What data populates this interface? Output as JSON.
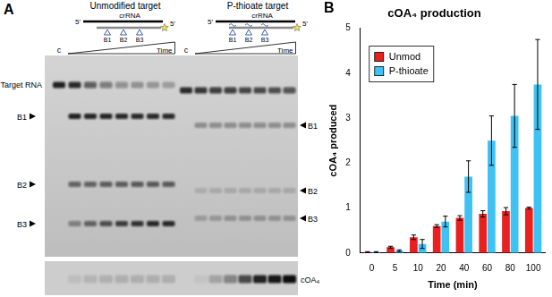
{
  "panel_a": {
    "panel_label": "A",
    "target_label": "Target RNA",
    "product_label": "cOA₄",
    "control_label": "c",
    "time_label": "Time",
    "groups": [
      {
        "title": "Unmodified target",
        "guide": "crRNA",
        "end_labels": [
          "5'",
          "5'"
        ],
        "sites": [
          "B1",
          "B2",
          "B3"
        ],
        "bands": [
          "B1",
          "B2",
          "B3"
        ]
      },
      {
        "title": "P-thioate target",
        "guide": "crRNA",
        "end_labels": [
          "5'",
          "5'"
        ],
        "sites": [
          "B1",
          "B2",
          "B3"
        ],
        "bands": [
          "B1",
          "B2",
          "B3"
        ]
      }
    ]
  },
  "chart_data": {
    "type": "bar",
    "panel_label": "B",
    "title": "cOA₄ production",
    "x_label": "Time (min)",
    "y_label": "cOA₄ produced",
    "categories": [
      "0",
      "5",
      "10",
      "20",
      "40",
      "60",
      "80",
      "100"
    ],
    "series": [
      {
        "name": "Unmod",
        "color": "#e8201e",
        "values": [
          0.02,
          0.13,
          0.35,
          0.6,
          0.78,
          0.87,
          0.93,
          1.0
        ],
        "errors": [
          0.01,
          0.02,
          0.05,
          0.03,
          0.05,
          0.07,
          0.08,
          0.02
        ]
      },
      {
        "name": "P-thioate",
        "color": "#3ec1f3",
        "values": [
          0.02,
          0.05,
          0.2,
          0.7,
          1.7,
          2.5,
          3.05,
          3.75
        ],
        "errors": [
          0.01,
          0.02,
          0.1,
          0.12,
          0.35,
          0.55,
          0.7,
          1.0
        ]
      }
    ],
    "ylim": [
      0,
      5
    ],
    "yticks": [
      0,
      1,
      2,
      3,
      4,
      5
    ],
    "grid": false,
    "legend": "upper left"
  }
}
